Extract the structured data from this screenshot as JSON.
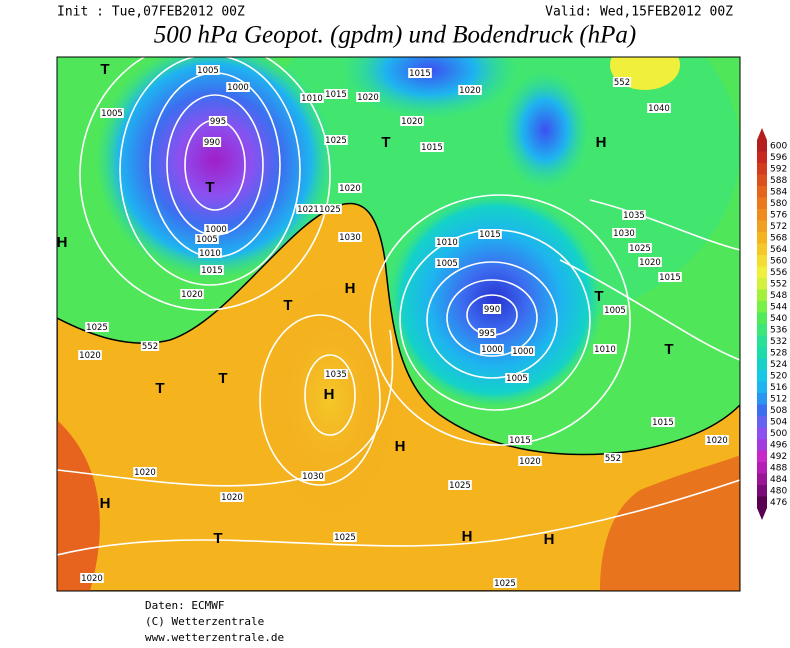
{
  "header": {
    "init": "Init : Tue,07FEB2012 00Z",
    "valid": "Valid: Wed,15FEB2012 00Z",
    "title": "500 hPa Geopot. (gpdm) und Bodendruck (hPa)"
  },
  "colorbar": {
    "levels": [
      600,
      596,
      592,
      588,
      584,
      580,
      576,
      572,
      568,
      564,
      560,
      556,
      552,
      548,
      544,
      540,
      536,
      532,
      528,
      524,
      520,
      516,
      512,
      508,
      504,
      500,
      496,
      492,
      488,
      484,
      480,
      476
    ],
    "colors": [
      "#b41e1e",
      "#c8281e",
      "#d23c1e",
      "#dc501e",
      "#e6641e",
      "#eb781e",
      "#f08c1e",
      "#f0a01e",
      "#f5b41e",
      "#f5c828",
      "#f5dc32",
      "#f0f03c",
      "#d2f03c",
      "#a0f03c",
      "#78f046",
      "#50eb5a",
      "#3ce678",
      "#28e196",
      "#1edcaa",
      "#14d2c8",
      "#14c8e6",
      "#1eb4f0",
      "#2896f0",
      "#3c6ef0",
      "#6464f0",
      "#8c50f0",
      "#a03ce0",
      "#c828c8",
      "#b41eb4",
      "#9a1496",
      "#7a0a78",
      "#5a0050"
    ]
  },
  "map": {
    "isobar_labels": [
      "1005",
      "1000",
      "1005",
      "995",
      "990",
      "1010",
      "1015",
      "1020",
      "1015",
      "1020",
      "1025",
      "1020",
      "1015",
      "1020",
      "1021",
      "1025",
      "1030",
      "1000",
      "1005",
      "1010",
      "1015",
      "1020",
      "1025",
      "1020",
      "552",
      "1010",
      "1015",
      "1005",
      "990",
      "995",
      "1000",
      "1000",
      "1005",
      "1035",
      "1030",
      "1025",
      "1020",
      "1015",
      "1005",
      "1010",
      "1015",
      "1020",
      "1015",
      "1020",
      "552",
      "1025",
      "1035",
      "1030",
      "1020",
      "1020",
      "1025",
      "1025",
      "1020",
      "552",
      "1040"
    ],
    "pressure_centers": [
      "T",
      "H",
      "T",
      "T",
      "T",
      "T",
      "H",
      "H",
      "T",
      "T",
      "H",
      "T",
      "H",
      "H",
      "T",
      "H",
      "H"
    ]
  },
  "footer": {
    "data": "Daten: ECMWF",
    "copyright": "(C) Wetterzentrale",
    "url": "www.wetterzentrale.de"
  }
}
